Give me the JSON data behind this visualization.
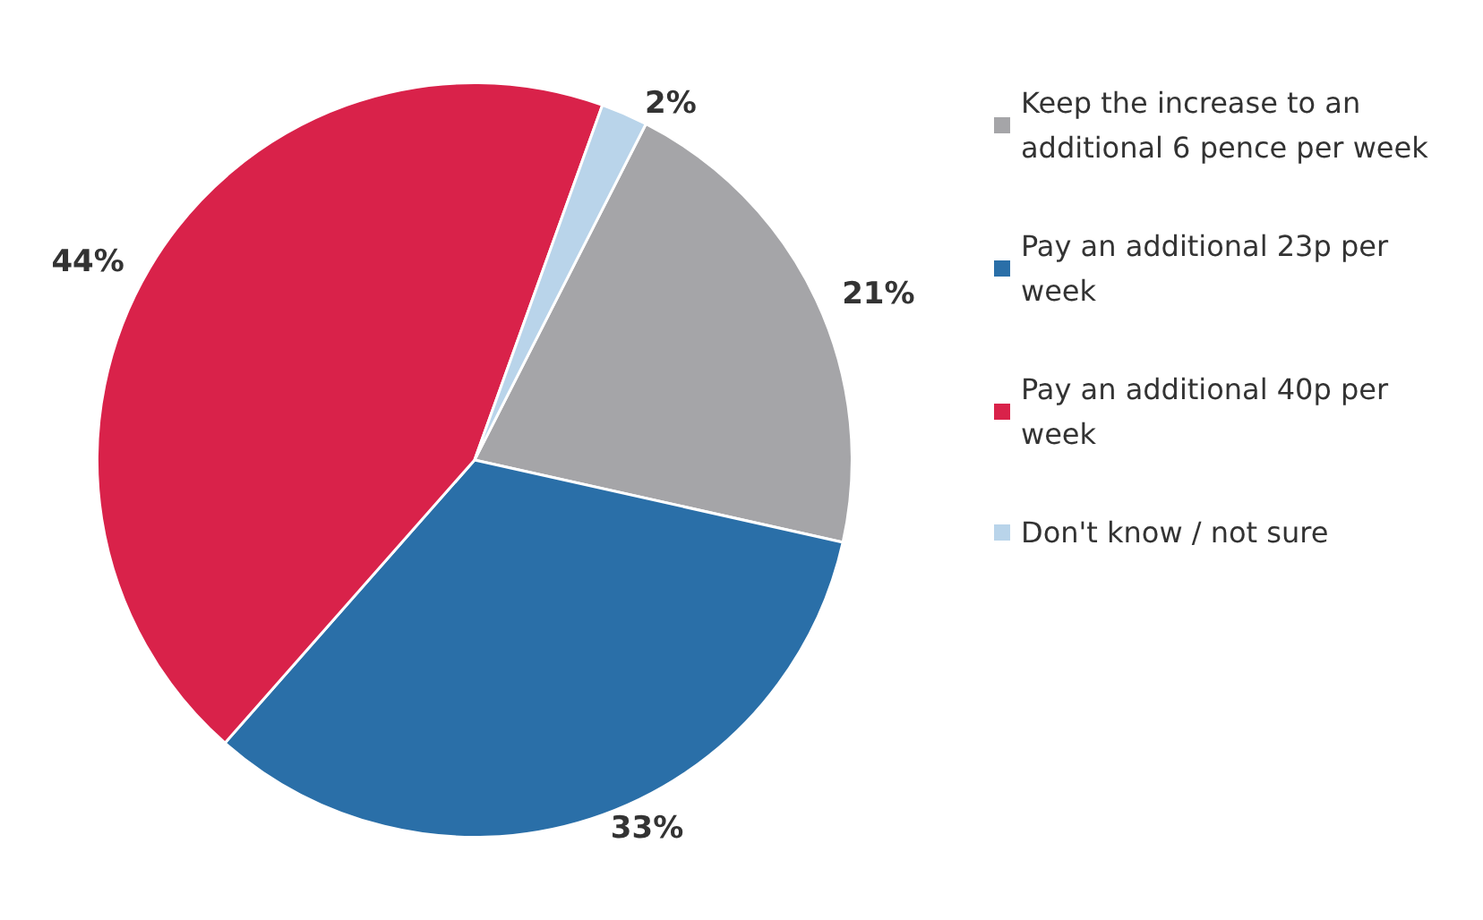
{
  "chart_data": {
    "type": "pie",
    "categories": [
      "Keep the increase to an additional 6 pence per week",
      "Pay an additional 23p per week",
      "Pay an additional 40p per week",
      "Don't know / not sure"
    ],
    "values": [
      21,
      33,
      44,
      2
    ],
    "value_labels": [
      "21%",
      "33%",
      "44%",
      "2%"
    ],
    "colors": [
      "#a5a5a8",
      "#2a6fa8",
      "#d9224a",
      "#b9d4ea"
    ],
    "legend": "right"
  }
}
